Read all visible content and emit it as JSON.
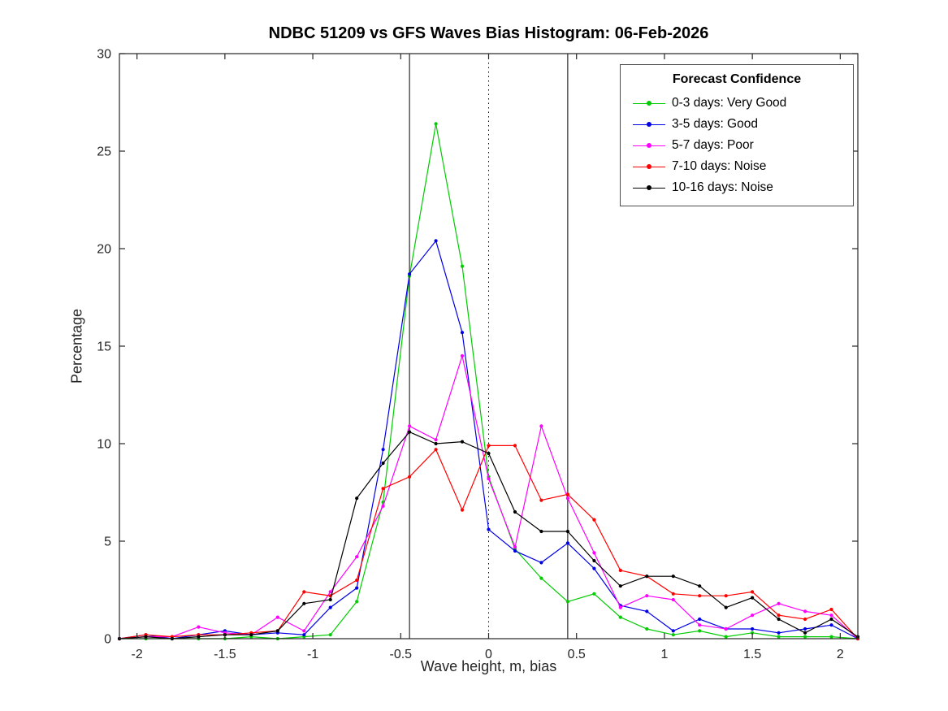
{
  "figure": {
    "title": "NDBC 51209 vs GFS Waves Bias Histogram: 06-Feb-2026"
  },
  "chart_data": {
    "type": "line",
    "title": "NDBC 51209 vs GFS Waves Bias Histogram: 06-Feb-2026",
    "xlabel": "Wave height, m, bias",
    "ylabel": "Percentage",
    "xlim": [
      -2.1,
      2.1
    ],
    "ylim": [
      0,
      30
    ],
    "xticks": [
      -2,
      -1.5,
      -1,
      -0.5,
      0,
      0.5,
      1,
      1.5,
      2
    ],
    "xtick_labels": [
      "-2",
      "-1.5",
      "-1",
      "-0.5",
      "0",
      "0.5",
      "1",
      "1.5",
      "2"
    ],
    "yticks": [
      0,
      5,
      10,
      15,
      20,
      25,
      30
    ],
    "ytick_labels": [
      "0",
      "5",
      "10",
      "15",
      "20",
      "25",
      "30"
    ],
    "grid": false,
    "legend": {
      "title": "Forecast Confidence",
      "position": "top-right"
    },
    "reference_lines": {
      "solid_x": [
        -0.45,
        0.45
      ],
      "dotted_x": [
        0
      ],
      "color": "#000000"
    },
    "x": [
      -2.1,
      -1.95,
      -1.8,
      -1.65,
      -1.5,
      -1.35,
      -1.2,
      -1.05,
      -0.9,
      -0.75,
      -0.6,
      -0.45,
      -0.3,
      -0.15,
      0,
      0.15,
      0.3,
      0.45,
      0.6,
      0.75,
      0.9,
      1.05,
      1.2,
      1.35,
      1.5,
      1.65,
      1.8,
      1.95,
      2.1
    ],
    "series": [
      {
        "name": "0-3 days: Very Good",
        "color": "#00cc00",
        "values": [
          0,
          0,
          0,
          0,
          0,
          0.1,
          0,
          0.1,
          0.2,
          1.9,
          7.0,
          18.6,
          26.4,
          19.1,
          8.3,
          4.6,
          3.1,
          1.9,
          2.3,
          1.1,
          0.5,
          0.2,
          0.4,
          0.1,
          0.3,
          0.1,
          0.1,
          0.1,
          0
        ]
      },
      {
        "name": "3-5 days: Good",
        "color": "#0000e6",
        "values": [
          0,
          0.2,
          0,
          0.2,
          0.4,
          0.2,
          0.3,
          0.2,
          1.6,
          2.6,
          9.7,
          18.7,
          20.4,
          15.7,
          5.6,
          4.5,
          3.9,
          4.9,
          3.6,
          1.7,
          1.4,
          0.4,
          1.0,
          0.5,
          0.5,
          0.3,
          0.5,
          0.7,
          0
        ]
      },
      {
        "name": "5-7 days: Poor",
        "color": "#ff00ff",
        "values": [
          0,
          0.1,
          0.1,
          0.6,
          0.3,
          0.2,
          1.1,
          0.4,
          2.4,
          4.2,
          6.8,
          10.9,
          10.2,
          14.5,
          8.2,
          4.7,
          10.9,
          7.2,
          4.4,
          1.6,
          2.2,
          2.0,
          0.7,
          0.5,
          1.2,
          1.8,
          1.4,
          1.2,
          0
        ]
      },
      {
        "name": "7-10 days: Noise",
        "color": "#ff0000",
        "values": [
          0,
          0.2,
          0.1,
          0.2,
          0.2,
          0.3,
          0.4,
          2.4,
          2.2,
          3.0,
          7.7,
          8.3,
          9.7,
          6.6,
          9.9,
          9.9,
          7.1,
          7.4,
          6.1,
          3.5,
          3.2,
          2.3,
          2.2,
          2.2,
          2.4,
          1.2,
          1.0,
          1.5,
          0
        ]
      },
      {
        "name": "10-16 days: Noise",
        "color": "#000000",
        "values": [
          0,
          0.1,
          0,
          0.1,
          0.2,
          0.2,
          0.4,
          1.8,
          2.0,
          7.2,
          9.0,
          10.6,
          10.0,
          10.1,
          9.5,
          6.5,
          5.5,
          5.5,
          4.0,
          2.7,
          3.2,
          3.2,
          2.7,
          1.6,
          2.1,
          1.0,
          0.3,
          1.0,
          0.1
        ]
      }
    ]
  }
}
